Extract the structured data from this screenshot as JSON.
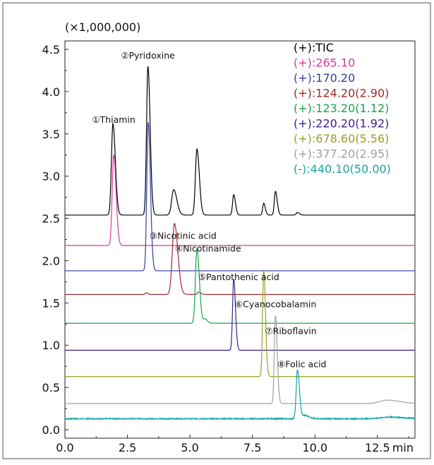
{
  "chart_data": {
    "type": "line",
    "title": "",
    "xlabel": "min",
    "ylabel": "",
    "y_multiplier": "(×1,000,000)",
    "xlim": [
      0.0,
      14.0
    ],
    "ylim": [
      -0.1,
      4.6
    ],
    "x_ticks": [
      "0.0",
      "2.5",
      "5.0",
      "7.5",
      "10.0",
      "12.5"
    ],
    "y_ticks": [
      "0.0",
      "0.5",
      "1.0",
      "1.5",
      "2.0",
      "2.5",
      "3.0",
      "3.5",
      "4.0",
      "4.5"
    ],
    "grid": false,
    "legend_position": "top-right",
    "series": [
      {
        "name": "(+):TIC",
        "color": "#000000",
        "baseline": 2.54,
        "peaks": [
          [
            1.92,
            1.08,
            0.06
          ],
          [
            3.32,
            1.76,
            0.055
          ],
          [
            4.35,
            0.3,
            0.08
          ],
          [
            5.28,
            0.78,
            0.06
          ],
          [
            6.75,
            0.24,
            0.045
          ],
          [
            7.95,
            0.14,
            0.04
          ],
          [
            8.42,
            0.28,
            0.045
          ],
          [
            9.3,
            0.03,
            0.05
          ]
        ]
      },
      {
        "name": "(+):265.10",
        "color": "#d6389a",
        "baseline": 2.18,
        "peaks": [
          [
            1.95,
            1.07,
            0.06
          ]
        ]
      },
      {
        "name": "(+):170.20",
        "color": "#343fa0",
        "baseline": 1.88,
        "peaks": [
          [
            3.33,
            1.76,
            0.055
          ]
        ]
      },
      {
        "name": "(+):124.20(2.90)",
        "color": "#9c2a2a",
        "baseline": 1.6,
        "peaks": [
          [
            4.38,
            0.84,
            0.085
          ],
          [
            3.25,
            0.02,
            0.04
          ],
          [
            5.35,
            0.03,
            0.05
          ]
        ]
      },
      {
        "name": "(+):123.20(1.12)",
        "color": "#16a34a",
        "baseline": 1.26,
        "peaks": [
          [
            5.28,
            0.88,
            0.06
          ],
          [
            5.6,
            0.05,
            0.06
          ]
        ]
      },
      {
        "name": "(+):220.20(1.92)",
        "color": "#3b1f8f",
        "baseline": 0.94,
        "peaks": [
          [
            6.75,
            0.84,
            0.045
          ]
        ]
      },
      {
        "name": "(+):678.60(5.56)",
        "color": "#9aa026",
        "baseline": 0.63,
        "peaks": [
          [
            7.95,
            1.26,
            0.045
          ]
        ]
      },
      {
        "name": "(+):377.20(2.95)",
        "color": "#a0a0a0",
        "baseline": 0.31,
        "peaks": [
          [
            8.42,
            1.04,
            0.045
          ],
          [
            12.9,
            0.04,
            0.3
          ]
        ]
      },
      {
        "name": "(-):440.10(50.00)",
        "color": "#1aa3a3",
        "baseline": 0.13,
        "peaks": [
          [
            9.3,
            0.58,
            0.05
          ],
          [
            9.6,
            0.04,
            0.1
          ],
          [
            13.0,
            0.02,
            0.35
          ]
        ]
      }
    ],
    "annotations": [
      {
        "text": "①Thiamin",
        "x": 1.95,
        "y": 3.63
      },
      {
        "text": "②Pyridoxine",
        "x": 3.32,
        "y": 4.39
      },
      {
        "text": "③Nicotinic acid",
        "x": 3.38,
        "y": 2.26
      },
      {
        "text": "④Nicotinamide",
        "x": 4.4,
        "y": 2.11
      },
      {
        "text": "⑤Pantothenic acid",
        "x": 5.33,
        "y": 1.77
      },
      {
        "text": "⑥Cyanocobalamin",
        "x": 6.8,
        "y": 1.45
      },
      {
        "text": "⑦Riboflavin",
        "x": 8.0,
        "y": 1.13
      },
      {
        "text": "⑧Folic acid",
        "x": 8.5,
        "y": 0.74
      }
    ]
  }
}
